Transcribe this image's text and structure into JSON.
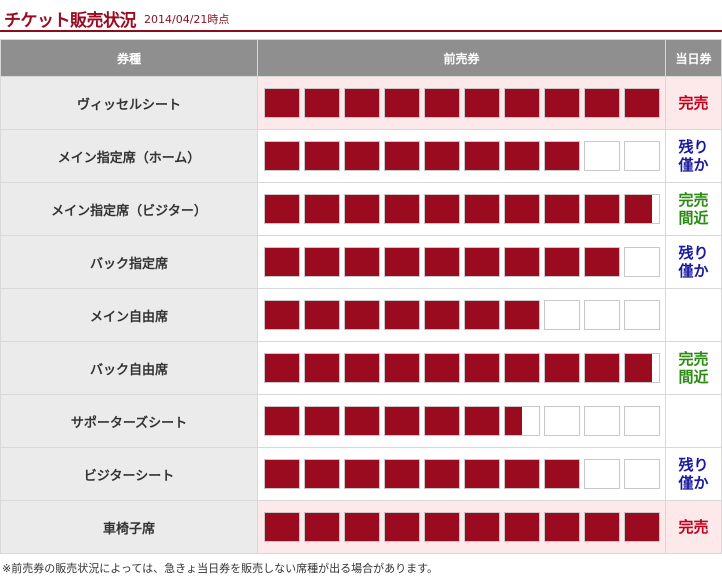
{
  "header": {
    "title": "チケット販売状況",
    "asof": "2014/04/21時点"
  },
  "table": {
    "columns": [
      "券種",
      "前売券",
      "当日券"
    ],
    "rows": [
      {
        "type": "ヴィッセルシート",
        "advance_level": 1.0,
        "advance_sold": true,
        "day_status": "完売",
        "day_kind": "sold"
      },
      {
        "type": "メイン指定席（ホーム）",
        "advance_level": 0.8,
        "advance_sold": false,
        "day_status": "残り僅か",
        "day_kind": "few"
      },
      {
        "type": "メイン指定席（ビジター）",
        "advance_level": 0.98,
        "advance_sold": false,
        "day_status": "完売間近",
        "day_kind": "near"
      },
      {
        "type": "バック指定席",
        "advance_level": 0.9,
        "advance_sold": false,
        "day_status": "残り僅か",
        "day_kind": "few"
      },
      {
        "type": "メイン自由席",
        "advance_level": 0.7,
        "advance_sold": false,
        "day_status": "",
        "day_kind": "none"
      },
      {
        "type": "バック自由席",
        "advance_level": 0.98,
        "advance_sold": false,
        "day_status": "完売間近",
        "day_kind": "near"
      },
      {
        "type": "サポーターズシート",
        "advance_level": 0.65,
        "advance_sold": false,
        "day_status": "",
        "day_kind": "none"
      },
      {
        "type": "ビジターシート",
        "advance_level": 0.8,
        "advance_sold": false,
        "day_status": "残り僅か",
        "day_kind": "few"
      },
      {
        "type": "車椅子席",
        "advance_level": 1.0,
        "advance_sold": true,
        "day_status": "完売",
        "day_kind": "sold"
      }
    ]
  },
  "note": "※前売券の販売状況によっては、急きょ当日券を販売しない席種が出る場合があります。",
  "colors": {
    "fill": "#9a0b20",
    "sold": "#c0001a",
    "near": "#2a8a12",
    "few": "#1a1aa0"
  }
}
